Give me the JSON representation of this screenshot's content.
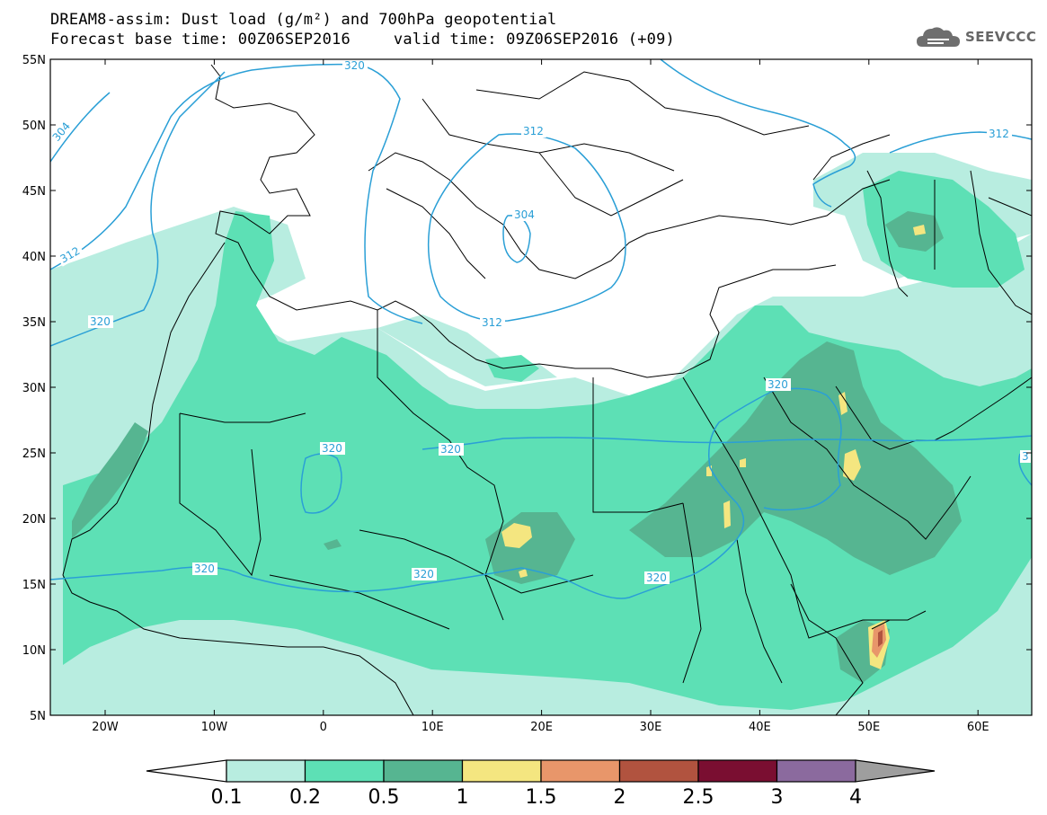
{
  "title": {
    "line1": "DREAM8-assim: Dust load (g/m²) and 700hPa geopotential",
    "base_time": "Forecast base time: 00Z06SEP2016",
    "valid_time": "valid time: 09Z06SEP2016 (+09)"
  },
  "logo": {
    "icon": "cloud-logo-icon",
    "text": "SEEVCCC"
  },
  "axes": {
    "lat_labels": [
      "55N",
      "50N",
      "45N",
      "40N",
      "35N",
      "30N",
      "25N",
      "20N",
      "15N",
      "10N",
      "5N"
    ],
    "lon_labels": [
      "20W",
      "10W",
      "0",
      "10E",
      "20E",
      "30E",
      "40E",
      "50E",
      "60E"
    ]
  },
  "contour_labels": {
    "c304_west": "304",
    "c312_west": "312",
    "c320_west": "320",
    "c320_north": "320",
    "c312_balkans": "312",
    "c304_adriatic": "304",
    "c312_med": "312",
    "c312_caspian": "312",
    "c320_arabia": "320",
    "c320_sahara_a": "320",
    "c320_sahara_b": "320",
    "c320_sahel_w": "320",
    "c320_sahel_c": "320",
    "c320_sahel_e": "320",
    "c3_east": "3"
  },
  "colorbar": {
    "labels": [
      "0.1",
      "0.2",
      "0.5",
      "1",
      "1.5",
      "2",
      "2.5",
      "3",
      "4"
    ],
    "colors": [
      "#b8ede0",
      "#5de0b5",
      "#56b591",
      "#f4e680",
      "#e8966a",
      "#b1533f",
      "#7a0e31",
      "#8b6a9e",
      "#9e9e9e"
    ],
    "under_color": "#ffffff"
  },
  "map_colors": {
    "light": "#b8ede0",
    "medium": "#5de0b5",
    "dark": "#56b591",
    "yellow": "#f4e680",
    "orange": "#e8966a",
    "brown": "#b1533f",
    "contour": "#2a9fd6"
  }
}
